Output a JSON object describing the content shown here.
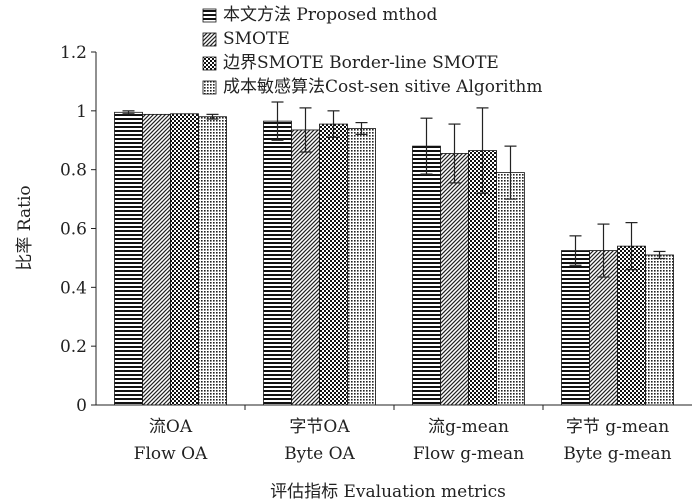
{
  "chart_data": {
    "type": "bar",
    "categories": [
      {
        "zh": "流OA",
        "en": "Flow OA"
      },
      {
        "zh": "字节OA",
        "en": "Byte OA"
      },
      {
        "zh": "流g-mean",
        "en": "Flow g-mean"
      },
      {
        "zh": "字节 g-mean",
        "en": "Byte g-mean"
      }
    ],
    "series": [
      {
        "name": "本文方法 Proposed mthod",
        "pattern": "hstripes",
        "values": [
          0.995,
          0.965,
          0.88,
          0.525
        ],
        "errors": [
          0.005,
          0.065,
          0.095,
          0.05
        ]
      },
      {
        "name": "SMOTE",
        "pattern": "diagonal",
        "values": [
          0.988,
          0.935,
          0.855,
          0.525
        ],
        "errors": [
          0.0,
          0.075,
          0.1,
          0.09
        ]
      },
      {
        "name": "边界SMOTE Border-line SMOTE",
        "pattern": "checker",
        "values": [
          0.99,
          0.955,
          0.865,
          0.54
        ],
        "errors": [
          0.0,
          0.045,
          0.145,
          0.08
        ]
      },
      {
        "name": "成本敏感算法Cost-sen sitive Algorithm",
        "pattern": "dots",
        "values": [
          0.98,
          0.94,
          0.79,
          0.51
        ],
        "errors": [
          0.008,
          0.02,
          0.09,
          0.012
        ]
      }
    ],
    "ylabel": "比率 Ratio",
    "xlabel": "评估指标 Evaluation metrics",
    "ylim": [
      0,
      1.2
    ],
    "yticks": [
      "0",
      "0.2",
      "0.4",
      "0.6",
      "0.8",
      "1",
      "1.2"
    ],
    "grid": false,
    "legend_position": "top"
  }
}
